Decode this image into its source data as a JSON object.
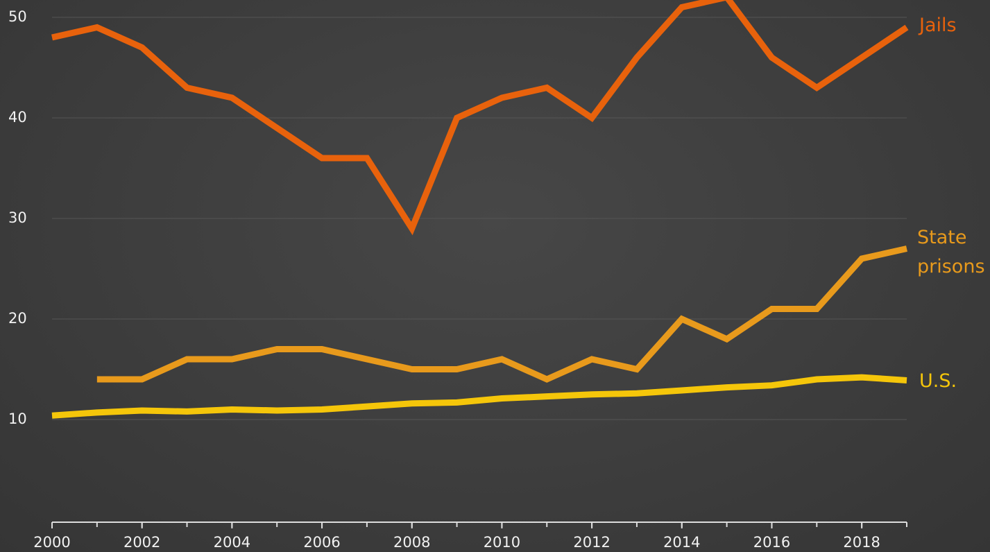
{
  "chart_data": {
    "type": "line",
    "x": [
      2000,
      2001,
      2002,
      2003,
      2004,
      2005,
      2006,
      2007,
      2008,
      2009,
      2010,
      2011,
      2012,
      2013,
      2014,
      2015,
      2016,
      2017,
      2018,
      2019
    ],
    "series": [
      {
        "name": "Jails",
        "color": "#e8620c",
        "values": [
          48,
          49,
          47,
          43,
          42,
          39,
          36,
          36,
          29,
          40,
          42,
          43,
          40,
          46,
          51,
          52,
          46,
          43,
          46,
          49
        ]
      },
      {
        "name": "State prisons",
        "color": "#e89a1c",
        "values": [
          null,
          14,
          14,
          16,
          16,
          17,
          17,
          16,
          15,
          15,
          16,
          14,
          16,
          15,
          20,
          18,
          21,
          21,
          26,
          27
        ]
      },
      {
        "name": "U.S.",
        "color": "#f5c60a",
        "values": [
          10.4,
          10.7,
          10.9,
          10.8,
          11,
          10.9,
          11,
          11.3,
          11.6,
          11.7,
          12.1,
          12.3,
          12.5,
          12.6,
          12.9,
          13.2,
          13.4,
          14,
          14.2,
          13.9
        ]
      }
    ],
    "xlim": [
      2000,
      2019
    ],
    "xticks": [
      2000,
      2002,
      2004,
      2006,
      2008,
      2010,
      2012,
      2014,
      2016,
      2018
    ],
    "ylim": [
      0,
      52
    ],
    "yticks": [
      10,
      20,
      30,
      40,
      50
    ],
    "grid": true
  }
}
